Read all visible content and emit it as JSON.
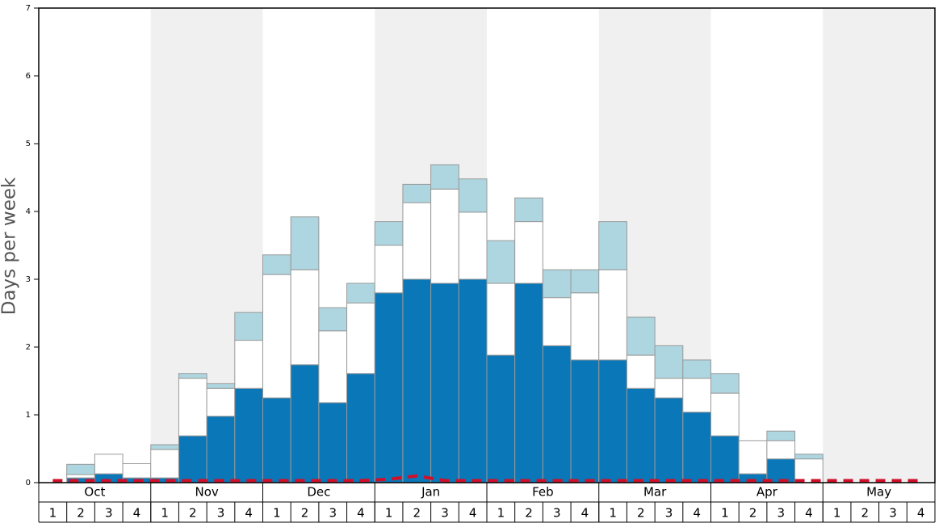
{
  "chart_data": {
    "type": "bar",
    "stacked": true,
    "y_label": "Days per week",
    "months": [
      "Oct",
      "Nov",
      "Dec",
      "Jan",
      "Feb",
      "Mar",
      "Apr",
      "May"
    ],
    "categories": [
      "1",
      "2",
      "3",
      "4",
      "1",
      "2",
      "3",
      "4",
      "1",
      "2",
      "3",
      "4",
      "1",
      "2",
      "3",
      "4",
      "1",
      "2",
      "3",
      "4",
      "1",
      "2",
      "3",
      "4",
      "1",
      "2",
      "3",
      "4",
      "1",
      "2",
      "3",
      "4"
    ],
    "series": [
      {
        "color": "#0a77b8",
        "values": [
          0,
          0.07,
          0.13,
          0.07,
          0.07,
          0.69,
          0.98,
          1.39,
          1.25,
          1.74,
          1.18,
          1.61,
          2.8,
          3.0,
          2.94,
          3.0,
          1.88,
          2.94,
          2.02,
          1.81,
          1.81,
          1.39,
          1.25,
          1.04,
          0.69,
          0.13,
          0.35,
          0,
          0,
          0,
          0,
          0
        ]
      },
      {
        "color": "#ffffff",
        "values": [
          0,
          0.05,
          0.29,
          0.21,
          0.42,
          0.85,
          0.41,
          0.71,
          1.82,
          1.4,
          1.06,
          1.04,
          0.7,
          1.13,
          1.39,
          0.99,
          1.06,
          0.91,
          0.71,
          0.99,
          1.33,
          0.49,
          0.29,
          0.5,
          0.63,
          0.49,
          0.27,
          0.35,
          0,
          0,
          0,
          0
        ]
      },
      {
        "color": "#aed6e0",
        "values": [
          0,
          0.15,
          0,
          0,
          0.07,
          0.07,
          0.07,
          0.41,
          0.29,
          0.78,
          0.34,
          0.29,
          0.35,
          0.27,
          0.36,
          0.49,
          0.63,
          0.35,
          0.41,
          0.34,
          0.71,
          0.56,
          0.48,
          0.27,
          0.29,
          0,
          0.14,
          0.07,
          0,
          0,
          0,
          0
        ]
      }
    ],
    "line": {
      "color": "#d0102a",
      "dashed": true,
      "values": [
        0.03,
        0.03,
        0.03,
        0.03,
        0.03,
        0.03,
        0.03,
        0.03,
        0.03,
        0.03,
        0.03,
        0.03,
        0.05,
        0.1,
        0.03,
        0.03,
        0.03,
        0.03,
        0.03,
        0.03,
        0.03,
        0.03,
        0.03,
        0.03,
        0.03,
        0.03,
        0.03,
        0.03,
        0.03,
        0.03,
        0.03,
        0.03
      ]
    },
    "ylim": [
      0,
      7
    ],
    "yticks": [
      0,
      1,
      2,
      3,
      4,
      5,
      6,
      7
    ]
  }
}
